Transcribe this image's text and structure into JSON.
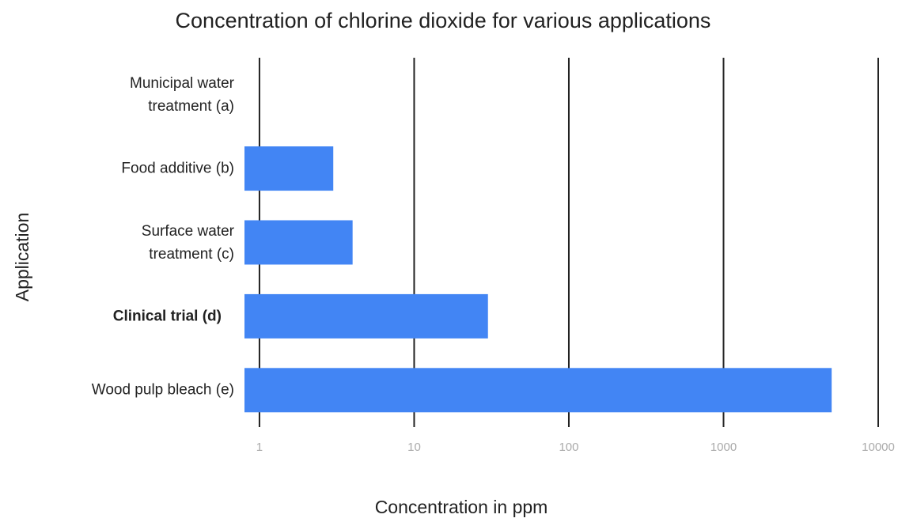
{
  "chart_data": {
    "type": "bar",
    "orientation": "horizontal",
    "title": "Concentration of chlorine dioxide for various applications",
    "x_label": "Concentration in ppm",
    "y_label": "Application",
    "categories": [
      "Municipal water treatment (a)",
      "Food additive (b)",
      "Surface water treatment (c)",
      "Clinical trial (d)",
      "Wood pulp bleach (e)"
    ],
    "values": [
      0.8,
      3,
      4,
      30,
      5000
    ],
    "color": "#4285f4",
    "xlim": [
      0.8,
      10000
    ],
    "xticks": [
      1,
      10,
      100,
      1000,
      10000
    ],
    "log_scale": true,
    "grid": true
  }
}
